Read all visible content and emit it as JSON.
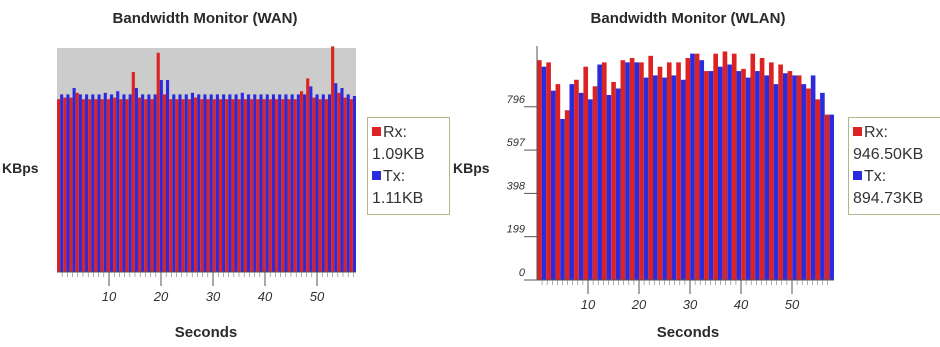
{
  "colors": {
    "rx": "#dd2222",
    "tx": "#2b2bdd",
    "plot_bg": "#cccccc"
  },
  "chart_data": [
    {
      "type": "bar",
      "title": "Bandwidth Monitor (WAN)",
      "ylabel": "KBps",
      "xlabel": "Seconds",
      "x_ticks": [
        "10",
        "20",
        "30",
        "40",
        "50"
      ],
      "y_ticks": [],
      "ylim": [
        0,
        1.4
      ],
      "legend": [
        {
          "name": "Rx:",
          "value": "1.09KB"
        },
        {
          "name": "Tx:",
          "value": "1.11KB"
        }
      ],
      "series": [
        {
          "name": "Rx",
          "values": [
            1.08,
            1.09,
            1.09,
            1.12,
            1.08,
            1.08,
            1.08,
            1.08,
            1.08,
            1.09,
            1.08,
            1.08,
            1.25,
            1.09,
            1.08,
            1.08,
            1.37,
            1.11,
            1.08,
            1.08,
            1.08,
            1.08,
            1.09,
            1.08,
            1.08,
            1.08,
            1.08,
            1.08,
            1.08,
            1.08,
            1.08,
            1.08,
            1.08,
            1.08,
            1.08,
            1.08,
            1.08,
            1.08,
            1.08,
            1.13,
            1.21,
            1.09,
            1.08,
            1.08,
            1.41,
            1.12,
            1.09,
            1.08
          ]
        },
        {
          "name": "Tx",
          "values": [
            1.11,
            1.11,
            1.15,
            1.11,
            1.11,
            1.11,
            1.11,
            1.12,
            1.11,
            1.13,
            1.11,
            1.11,
            1.15,
            1.11,
            1.11,
            1.11,
            1.2,
            1.2,
            1.11,
            1.11,
            1.11,
            1.12,
            1.11,
            1.11,
            1.11,
            1.11,
            1.11,
            1.11,
            1.11,
            1.12,
            1.11,
            1.11,
            1.11,
            1.11,
            1.11,
            1.11,
            1.11,
            1.11,
            1.11,
            1.11,
            1.16,
            1.11,
            1.11,
            1.11,
            1.18,
            1.15,
            1.11,
            1.1
          ]
        }
      ]
    },
    {
      "type": "bar",
      "title": "Bandwidth Monitor (WLAN)",
      "ylabel": "KBps",
      "xlabel": "Seconds",
      "x_ticks": [
        "10",
        "20",
        "30",
        "40",
        "50"
      ],
      "y_ticks": [
        "0",
        "199",
        "398",
        "597",
        "796"
      ],
      "ylim": [
        0,
        1066
      ],
      "legend": [
        {
          "name": "Rx:",
          "value": "946.50KB"
        },
        {
          "name": "Tx:",
          "value": "894.73KB"
        }
      ],
      "series": [
        {
          "name": "Rx",
          "values": [
            1010,
            1000,
            900,
            780,
            920,
            980,
            890,
            1000,
            910,
            1010,
            1020,
            1000,
            1030,
            980,
            1000,
            1000,
            1020,
            1040,
            960,
            1040,
            1050,
            1040,
            970,
            1040,
            1020,
            1000,
            990,
            960,
            940,
            880,
            830,
            760
          ]
        },
        {
          "name": "Tx",
          "values": [
            980,
            870,
            740,
            900,
            860,
            830,
            990,
            850,
            880,
            1000,
            1000,
            930,
            940,
            930,
            940,
            920,
            1040,
            1010,
            960,
            980,
            990,
            960,
            930,
            960,
            940,
            900,
            950,
            940,
            900,
            940,
            860,
            760
          ]
        }
      ]
    }
  ]
}
